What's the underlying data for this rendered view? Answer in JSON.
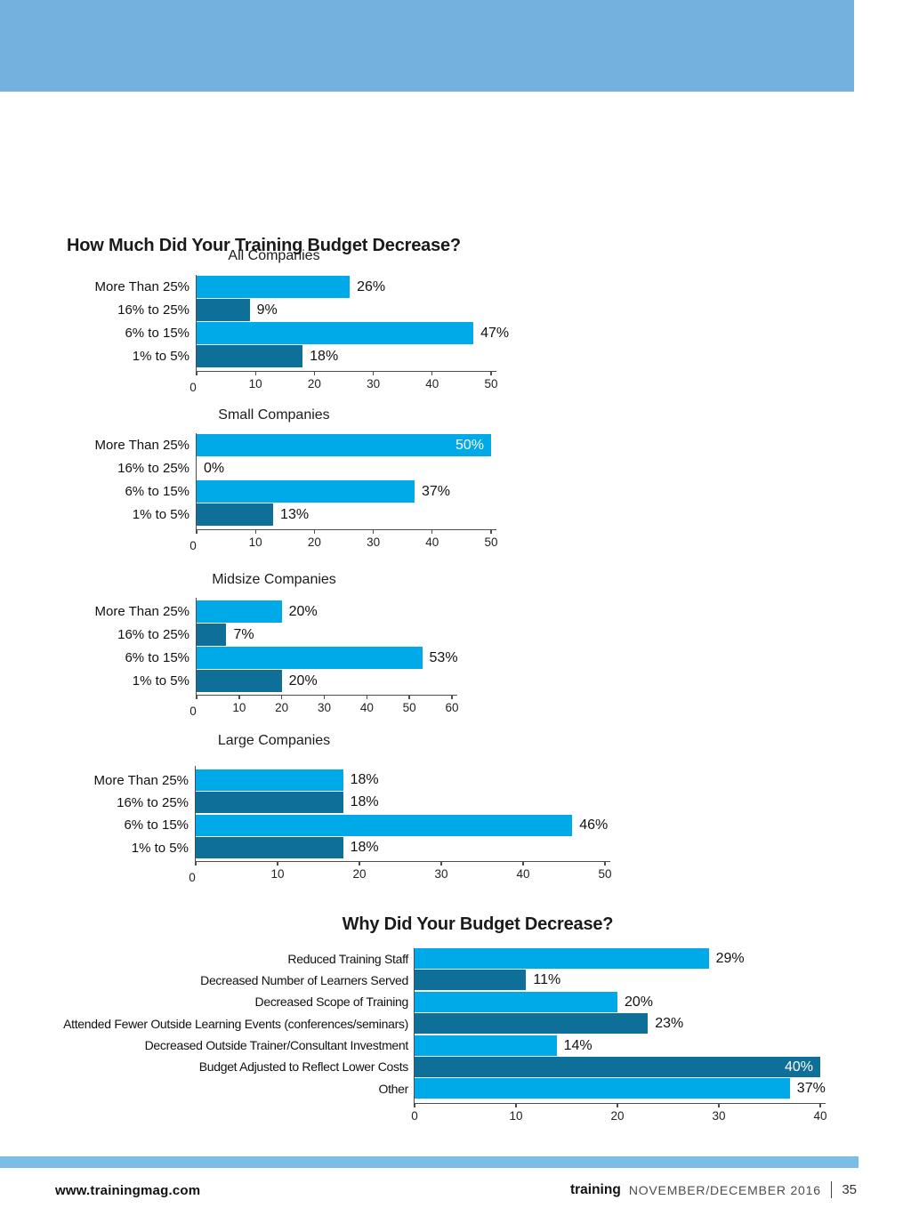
{
  "page": {
    "main_title": "How Much Did Your Training Budget Decrease?",
    "why_title": "Why Did Your Budget Decrease?"
  },
  "colors": {
    "light_bar": "#00A9E8",
    "dark_bar": "#0E6F99",
    "top_band": "#74B1DE",
    "footer_band": "#7CBDE6",
    "axis": "#4d4d4d"
  },
  "footer": {
    "url": "www.trainingmag.com",
    "brand": "training",
    "issue": "NOVEMBER/DECEMBER 2016",
    "page_number": "35"
  },
  "chart_data": [
    {
      "type": "bar",
      "orientation": "horizontal",
      "title": "All Companies",
      "categories": [
        "More Than 25%",
        "16% to 25%",
        "6% to 15%",
        "1% to 5%"
      ],
      "values": [
        26,
        9,
        47,
        18
      ],
      "value_labels": [
        "26%",
        "9%",
        "47%",
        "18%"
      ],
      "bar_colors": [
        "#00A9E8",
        "#0E6F99",
        "#00A9E8",
        "#0E6F99"
      ],
      "xlim": [
        0,
        50
      ],
      "ticks": [
        0,
        10,
        20,
        30,
        40,
        50
      ],
      "grid": false,
      "legend": false
    },
    {
      "type": "bar",
      "orientation": "horizontal",
      "title": "Small Companies",
      "categories": [
        "More Than 25%",
        "16% to 25%",
        "6% to 15%",
        "1% to 5%"
      ],
      "values": [
        50,
        0,
        37,
        13
      ],
      "value_labels": [
        "50%",
        "0%",
        "37%",
        "13%"
      ],
      "bar_colors": [
        "#00A9E8",
        "#0E6F99",
        "#00A9E8",
        "#0E6F99"
      ],
      "xlim": [
        0,
        50
      ],
      "ticks": [
        0,
        10,
        20,
        30,
        40,
        50
      ],
      "grid": false,
      "legend": false
    },
    {
      "type": "bar",
      "orientation": "horizontal",
      "title": "Midsize Companies",
      "categories": [
        "More Than 25%",
        "16% to 25%",
        "6% to 15%",
        "1% to 5%"
      ],
      "values": [
        20,
        7,
        53,
        20
      ],
      "value_labels": [
        "20%",
        "7%",
        "53%",
        "20%"
      ],
      "bar_colors": [
        "#00A9E8",
        "#0E6F99",
        "#00A9E8",
        "#0E6F99"
      ],
      "xlim": [
        0,
        60
      ],
      "ticks": [
        0,
        10,
        20,
        30,
        40,
        50,
        60
      ],
      "grid": false,
      "legend": false
    },
    {
      "type": "bar",
      "orientation": "horizontal",
      "title": "Large Companies",
      "categories": [
        "More Than 25%",
        "16% to 25%",
        "6% to 15%",
        "1% to 5%"
      ],
      "values": [
        18,
        18,
        46,
        18
      ],
      "value_labels": [
        "18%",
        "18%",
        "46%",
        "18%"
      ],
      "bar_colors": [
        "#00A9E8",
        "#0E6F99",
        "#00A9E8",
        "#0E6F99"
      ],
      "xlim": [
        0,
        50
      ],
      "ticks": [
        0,
        10,
        20,
        30,
        40,
        50
      ],
      "grid": false,
      "legend": false
    },
    {
      "type": "bar",
      "orientation": "horizontal",
      "title": "Why Did Your Budget Decrease?",
      "categories": [
        "Reduced Training Staff",
        "Decreased Number of Learners Served",
        "Decreased Scope of Training",
        "Attended Fewer Outside Learning Events (conferences/seminars)",
        "Decreased Outside Trainer/Consultant Investment",
        "Budget Adjusted to Reflect Lower Costs",
        "Other"
      ],
      "values": [
        29,
        11,
        20,
        23,
        14,
        40,
        37
      ],
      "value_labels": [
        "29%",
        "11%",
        "20%",
        "23%",
        "14%",
        "40%",
        "37%"
      ],
      "bar_colors": [
        "#00A9E8",
        "#0E6F99",
        "#00A9E8",
        "#0E6F99",
        "#00A9E8",
        "#0E6F99",
        "#00A9E8"
      ],
      "xlim": [
        0,
        40
      ],
      "ticks": [
        0,
        10,
        20,
        30,
        40
      ],
      "grid": false,
      "legend": false
    }
  ]
}
